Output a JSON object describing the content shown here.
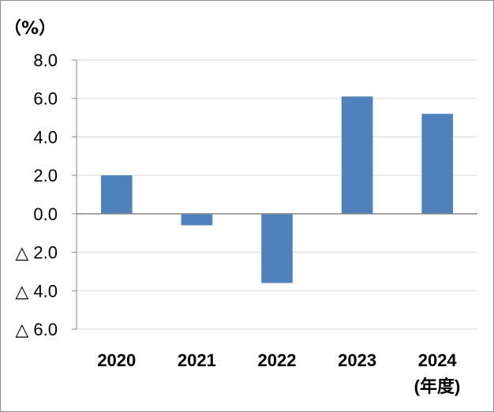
{
  "chart_data": {
    "type": "bar",
    "y_unit_label": "（%）",
    "x_unit_label": "(年度)",
    "categories": [
      "2020",
      "2021",
      "2022",
      "2023",
      "2024"
    ],
    "values": [
      2.0,
      -0.6,
      -3.6,
      6.1,
      5.2
    ],
    "ylim": [
      -6.0,
      8.0
    ],
    "yticks": [
      8.0,
      6.0,
      4.0,
      2.0,
      0.0,
      -2.0,
      -4.0,
      -6.0
    ],
    "ytick_labels": [
      "8.0",
      "6.0",
      "4.0",
      "2.0",
      "0.0",
      "△ 2.0",
      "△ 4.0",
      "△ 6.0"
    ],
    "grid": true,
    "bar_color": "#4F81BD",
    "grid_color": "#D9D9D9",
    "axis_color": "#868686"
  }
}
